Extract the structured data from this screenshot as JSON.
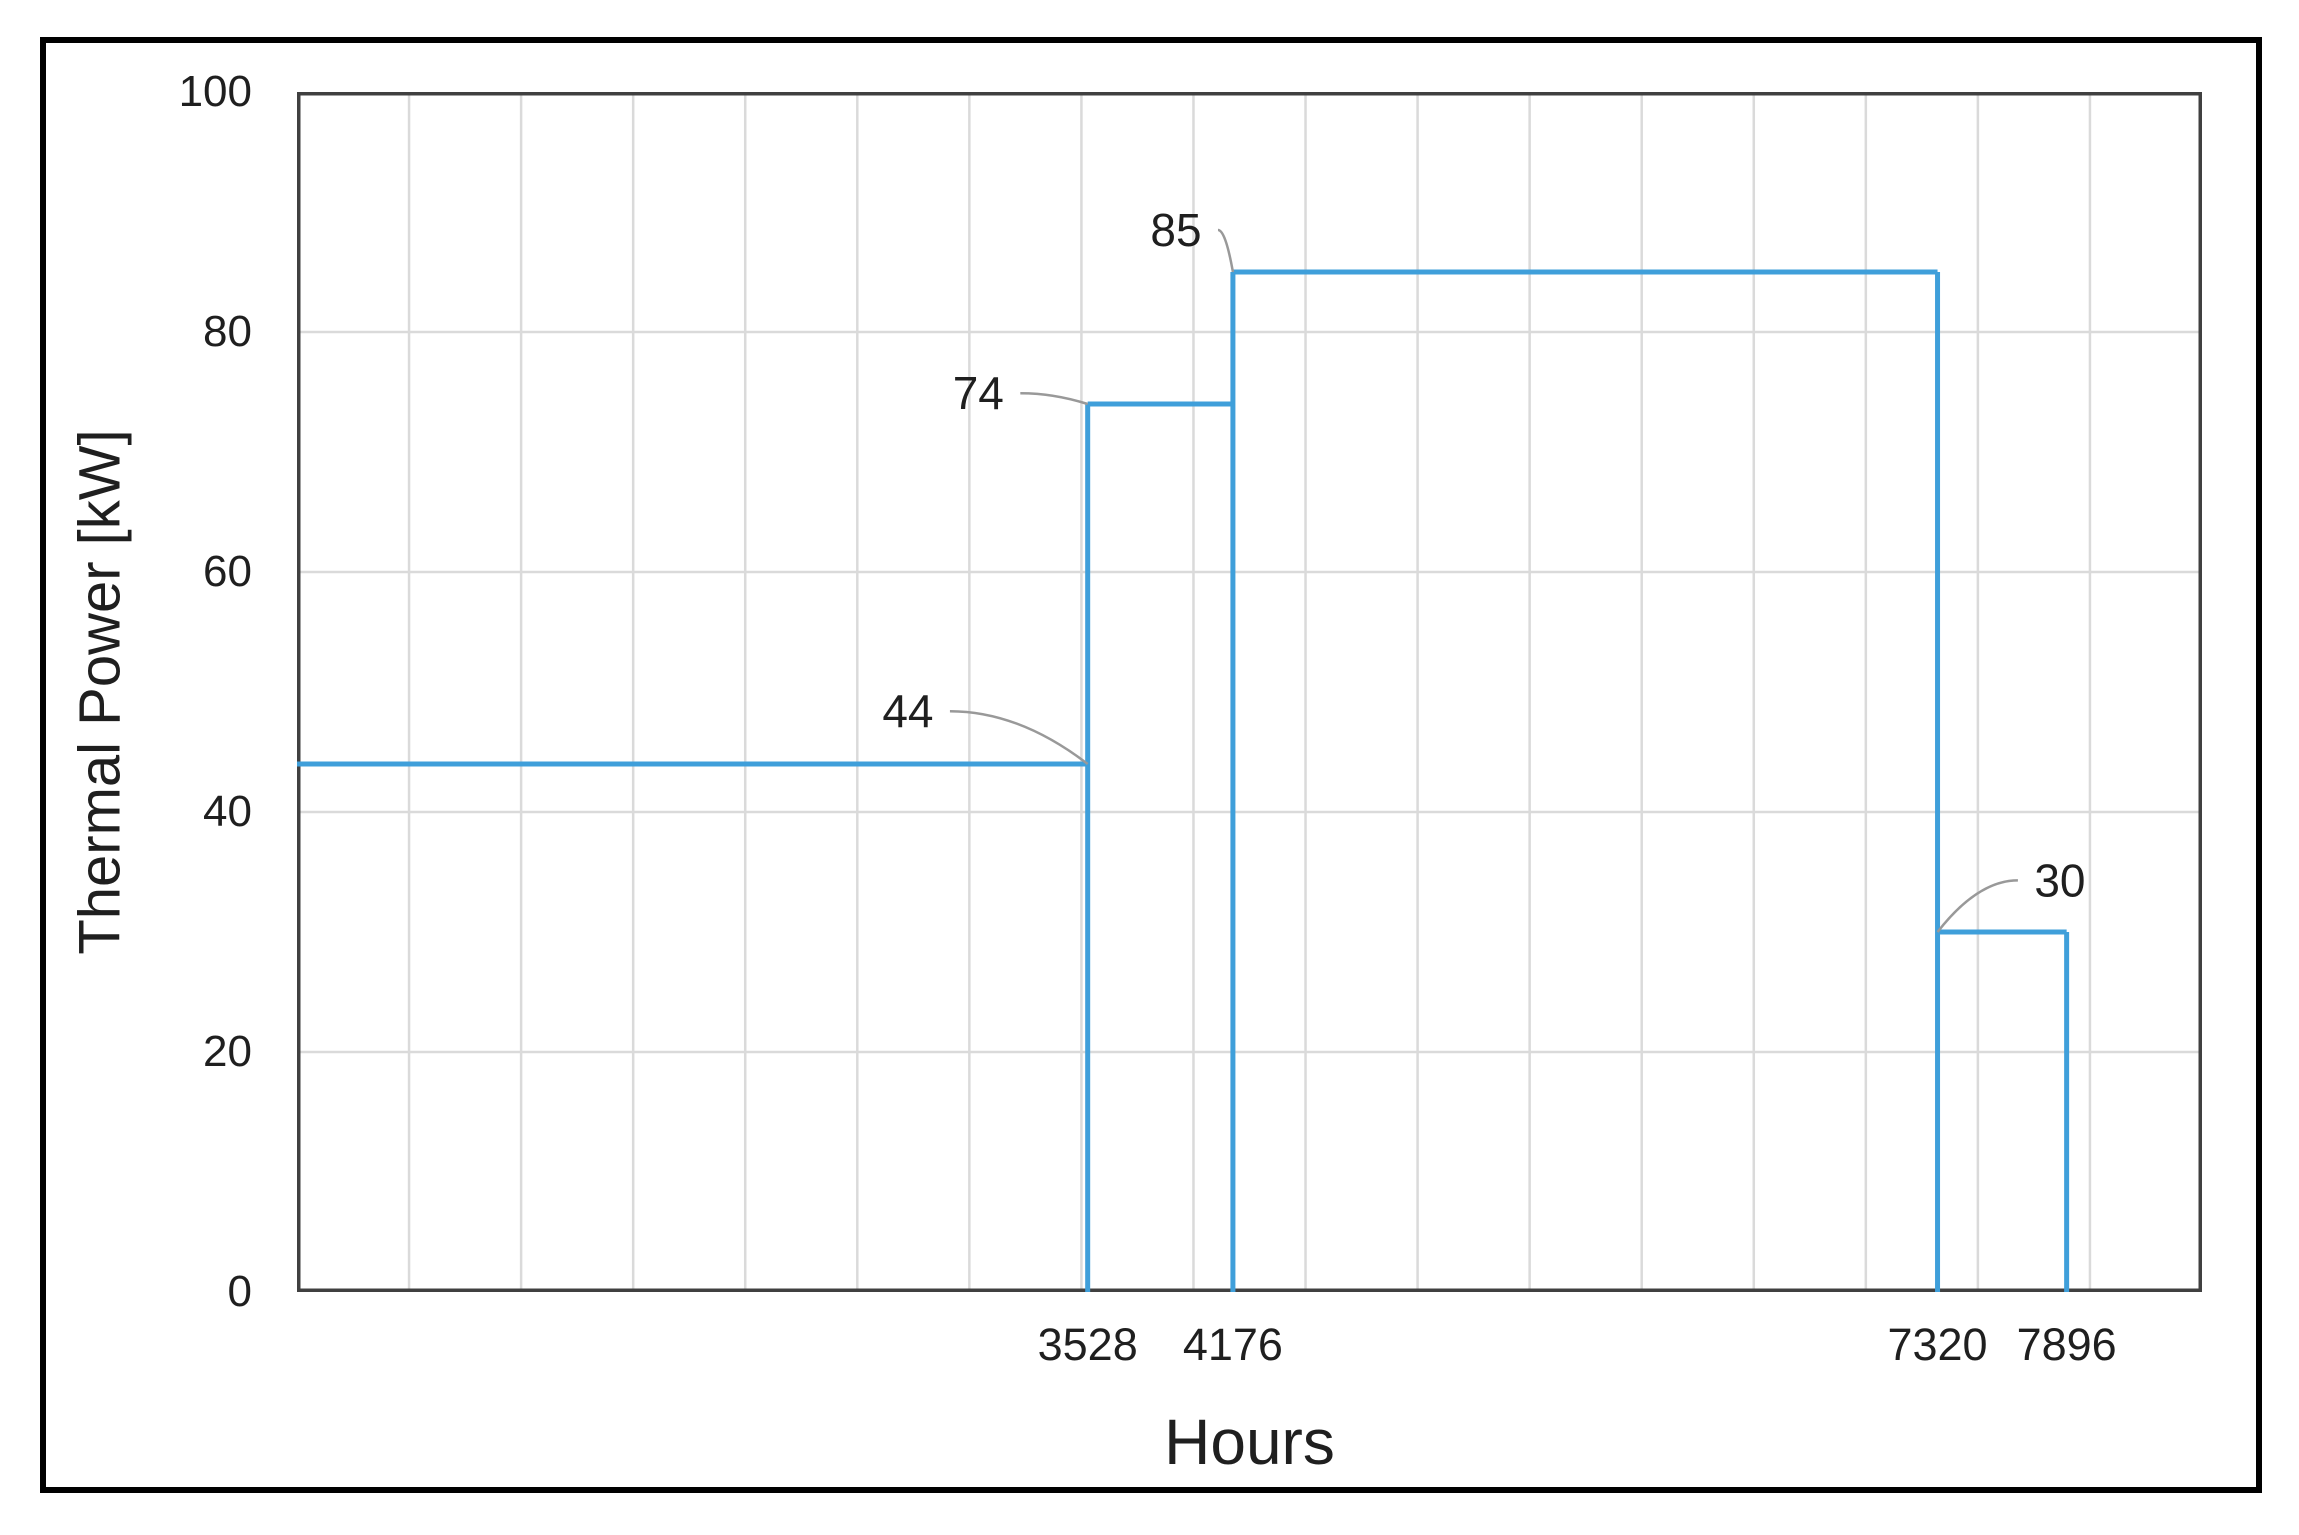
{
  "figure": {
    "background": "#ffffff",
    "frame_color": "#000000"
  },
  "chart_data": {
    "type": "line",
    "subtype": "step-with-drop-lines",
    "title": "",
    "xlabel": "Hours",
    "ylabel": "Thermal Power [kW]",
    "xlim": [
      0,
      8500
    ],
    "ylim": [
      0,
      100
    ],
    "grid": true,
    "x_gridline_step": 500,
    "y_gridline_step": 20,
    "yticks": [
      "0",
      "20",
      "40",
      "60",
      "80",
      "100"
    ],
    "ytick_values": [
      0,
      20,
      40,
      60,
      80,
      100
    ],
    "xticks": [
      "3528",
      "4176",
      "7320",
      "7896"
    ],
    "xtick_values": [
      3528,
      4176,
      7320,
      7896
    ],
    "series": [
      {
        "name": "Thermal Power",
        "step_intervals": [
          {
            "from_hours": 0,
            "to_hours": 3528,
            "kw": 44
          },
          {
            "from_hours": 3528,
            "to_hours": 4176,
            "kw": 74
          },
          {
            "from_hours": 4176,
            "to_hours": 7320,
            "kw": 85
          },
          {
            "from_hours": 7320,
            "to_hours": 7896,
            "kw": 30
          }
        ],
        "drop_lines_to_zero": true
      }
    ],
    "annotations": [
      {
        "label": "44",
        "value": 44,
        "label_hours": 2726,
        "label_kw": 48.4,
        "target_hours": 3528,
        "target_kw": 44
      },
      {
        "label": "74",
        "value": 74,
        "label_hours": 3040,
        "label_kw": 74.9,
        "target_hours": 3528,
        "target_kw": 74
      },
      {
        "label": "85",
        "value": 85,
        "label_hours": 3922,
        "label_kw": 88.5,
        "target_hours": 4176,
        "target_kw": 85
      },
      {
        "label": "30",
        "value": 30,
        "label_hours": 7866,
        "label_kw": 34.3,
        "target_hours": 7320,
        "target_kw": 30
      }
    ],
    "colors": {
      "series_line": "#3F9FDA",
      "gridline": "#DADADA",
      "plot_border": "#404040",
      "leader_line": "#999999",
      "text": "#1f1f1f"
    }
  }
}
